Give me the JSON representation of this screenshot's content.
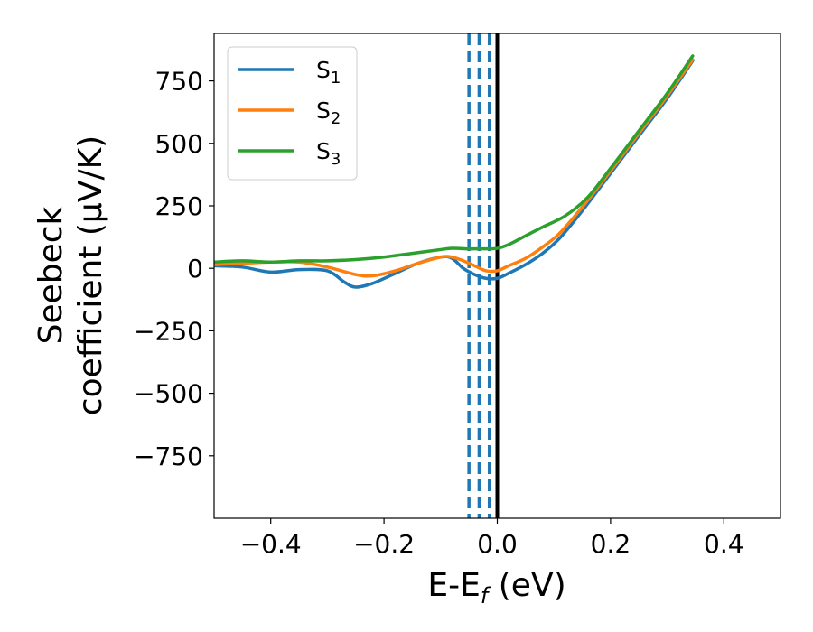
{
  "chart_data": {
    "type": "line",
    "xlabel": {
      "main": "E-E",
      "sub": "f",
      "suffix": " (eV)"
    },
    "ylabel": {
      "line1": "Seebeck",
      "line2": "coefficient  (μV/K)"
    },
    "xlim": [
      -0.5,
      0.5
    ],
    "ylim": [
      -1000,
      940
    ],
    "xticks": [
      {
        "value": -0.4,
        "label": "−0.4"
      },
      {
        "value": -0.2,
        "label": "−0.2"
      },
      {
        "value": 0.0,
        "label": "0.0"
      },
      {
        "value": 0.2,
        "label": "0.2"
      },
      {
        "value": 0.4,
        "label": "0.4"
      }
    ],
    "yticks": [
      {
        "value": 750,
        "label": "750"
      },
      {
        "value": 500,
        "label": "500"
      },
      {
        "value": 250,
        "label": "250"
      },
      {
        "value": 0,
        "label": "0"
      },
      {
        "value": -250,
        "label": "−250"
      },
      {
        "value": -500,
        "label": "−500"
      },
      {
        "value": -750,
        "label": "−750"
      }
    ],
    "vlines": [
      {
        "x": 0.0,
        "style": "solid",
        "color": "#000000"
      },
      {
        "x": -0.05,
        "style": "dashed",
        "color": "#1f77b4"
      },
      {
        "x": -0.032,
        "style": "dashed",
        "color": "#1f77b4"
      },
      {
        "x": -0.014,
        "style": "dashed",
        "color": "#1f77b4"
      }
    ],
    "series": [
      {
        "name": "S",
        "sub": "1",
        "color": "#1f77b4",
        "x": [
          -0.5,
          -0.45,
          -0.4,
          -0.35,
          -0.3,
          -0.27,
          -0.25,
          -0.22,
          -0.18,
          -0.14,
          -0.1,
          -0.08,
          -0.06,
          -0.04,
          -0.02,
          0.0,
          0.02,
          0.05,
          0.08,
          0.11,
          0.15,
          0.2,
          0.25,
          0.3,
          0.345
        ],
        "values": [
          10,
          5,
          -15,
          -5,
          -10,
          -55,
          -75,
          -60,
          -20,
          20,
          45,
          40,
          0,
          -25,
          -40,
          -40,
          -20,
          15,
          60,
          120,
          230,
          380,
          530,
          680,
          830
        ]
      },
      {
        "name": "S",
        "sub": "2",
        "color": "#ff7f0e",
        "x": [
          -0.5,
          -0.45,
          -0.4,
          -0.35,
          -0.3,
          -0.25,
          -0.22,
          -0.18,
          -0.14,
          -0.1,
          -0.08,
          -0.06,
          -0.04,
          -0.02,
          0.0,
          0.02,
          0.05,
          0.08,
          0.11,
          0.15,
          0.2,
          0.25,
          0.3,
          0.345
        ],
        "values": [
          15,
          20,
          25,
          25,
          5,
          -25,
          -30,
          -10,
          20,
          45,
          45,
          30,
          10,
          -10,
          -10,
          10,
          40,
          85,
          140,
          245,
          390,
          540,
          690,
          835
        ]
      },
      {
        "name": "S",
        "sub": "3",
        "color": "#2ca02c",
        "x": [
          -0.5,
          -0.45,
          -0.4,
          -0.35,
          -0.3,
          -0.25,
          -0.2,
          -0.15,
          -0.1,
          -0.08,
          -0.05,
          -0.02,
          0.0,
          0.02,
          0.05,
          0.08,
          0.12,
          0.16,
          0.2,
          0.25,
          0.3,
          0.345
        ],
        "values": [
          25,
          30,
          25,
          30,
          30,
          35,
          45,
          60,
          75,
          80,
          78,
          78,
          80,
          95,
          130,
          165,
          210,
          285,
          400,
          550,
          700,
          850
        ]
      }
    ],
    "legend": {
      "position": "top-left"
    },
    "grid": false
  }
}
